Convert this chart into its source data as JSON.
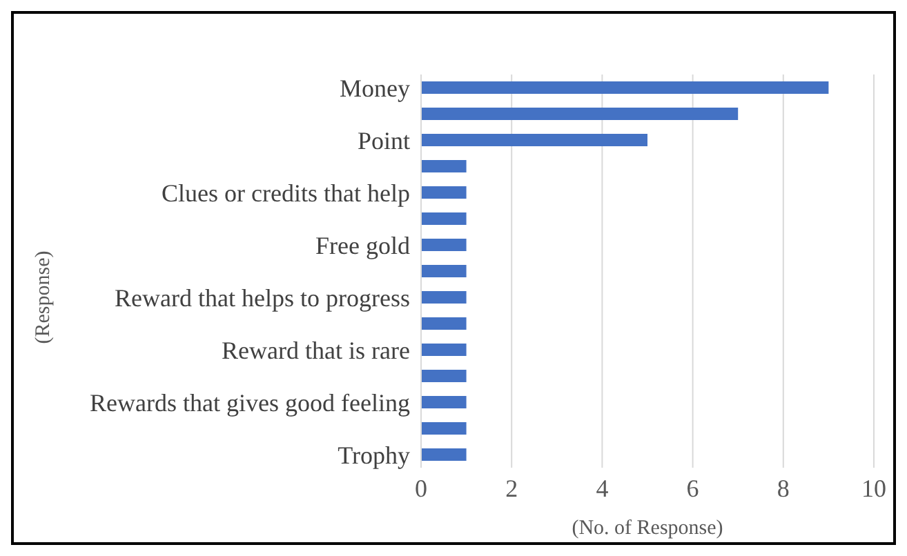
{
  "chart_data": {
    "type": "bar",
    "orientation": "horizontal",
    "categories": [
      "Money",
      null,
      "Point",
      null,
      "Clues or credits that help",
      null,
      "Free gold",
      null,
      "Reward that helps to progress",
      null,
      "Reward that is rare",
      null,
      "Rewards that gives good feeling",
      null,
      "Trophy"
    ],
    "values": [
      9,
      7,
      5,
      1,
      1,
      1,
      1,
      1,
      1,
      1,
      1,
      1,
      1,
      1,
      1
    ],
    "color": "#4472c4",
    "xlim": [
      0,
      10
    ],
    "xticks": [
      0,
      2,
      4,
      6,
      8,
      10
    ],
    "xlabel": "(No. of Response)",
    "ylabel": "(Response)",
    "grid": "x"
  }
}
